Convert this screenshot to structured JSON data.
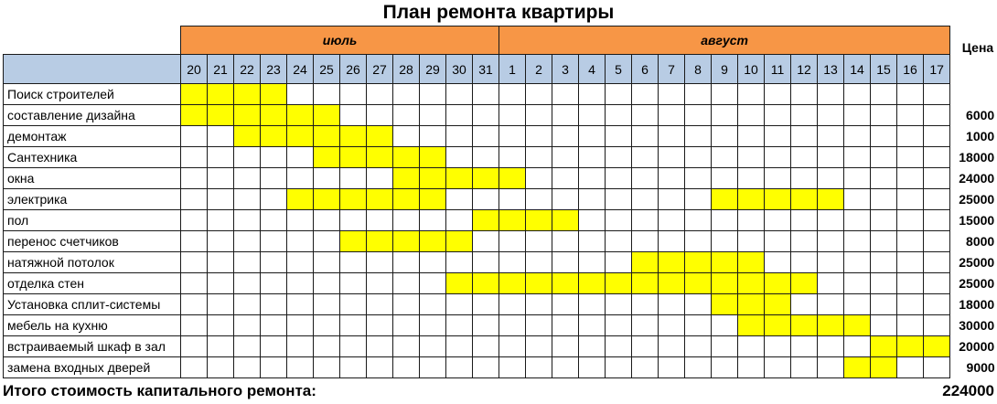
{
  "title": "План ремонта квартиры",
  "months": [
    {
      "label": "июль",
      "days": 12
    },
    {
      "label": "август",
      "days": 17
    }
  ],
  "days": [
    "20",
    "21",
    "22",
    "23",
    "24",
    "25",
    "26",
    "27",
    "28",
    "29",
    "30",
    "31",
    "1",
    "2",
    "3",
    "4",
    "5",
    "6",
    "7",
    "8",
    "9",
    "10",
    "11",
    "12",
    "13",
    "14",
    "15",
    "16",
    "17"
  ],
  "price_header": "Цена",
  "tasks": [
    {
      "name": "Поиск строителей",
      "price": "",
      "active": [
        0,
        1,
        2,
        3
      ]
    },
    {
      "name": "составление дизайна",
      "price": "6000",
      "active": [
        0,
        1,
        2,
        3,
        4,
        5
      ]
    },
    {
      "name": "демонтаж",
      "price": "1000",
      "active": [
        2,
        3,
        4,
        5,
        6,
        7
      ]
    },
    {
      "name": "Сантехника",
      "price": "18000",
      "active": [
        5,
        6,
        7,
        8,
        9
      ]
    },
    {
      "name": "окна",
      "price": "24000",
      "active": [
        8,
        9,
        10,
        11,
        12
      ]
    },
    {
      "name": "электрика",
      "price": "25000",
      "active": [
        4,
        5,
        6,
        7,
        8,
        9,
        20,
        21,
        22,
        23,
        24
      ]
    },
    {
      "name": "пол",
      "price": "15000",
      "active": [
        11,
        12,
        13,
        14
      ]
    },
    {
      "name": "перенос счетчиков",
      "price": "8000",
      "active": [
        6,
        7,
        8,
        9,
        10
      ]
    },
    {
      "name": "натяжной потолок",
      "price": "25000",
      "active": [
        17,
        18,
        19,
        20,
        21
      ]
    },
    {
      "name": "отделка стен",
      "price": "25000",
      "active": [
        10,
        11,
        12,
        13,
        14,
        15,
        16,
        17,
        18,
        19,
        20,
        21,
        22,
        23
      ]
    },
    {
      "name": "Установка сплит-системы",
      "price": "18000",
      "active": [
        20,
        21,
        22
      ]
    },
    {
      "name": "мебель на кухню",
      "price": "30000",
      "active": [
        21,
        22,
        23,
        24,
        25
      ]
    },
    {
      "name": "встраиваемый шкаф в зал",
      "price": "20000",
      "active": [
        26,
        27,
        28
      ]
    },
    {
      "name": "замена входных дверей",
      "price": "9000",
      "active": [
        25,
        26
      ]
    }
  ],
  "total": {
    "label": "Итого стоимость капитального ремонта:",
    "value": "224000"
  },
  "colors": {
    "month": "#f79646",
    "day": "#b8cce4",
    "active": "#ffff00",
    "grid": "#1a1a1a"
  }
}
